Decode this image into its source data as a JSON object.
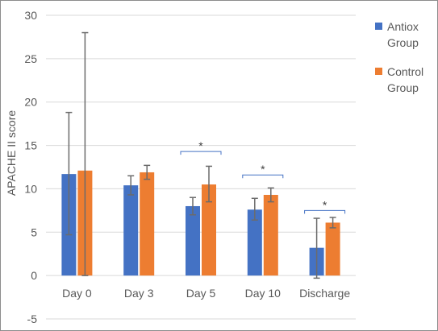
{
  "chart_data": {
    "type": "bar",
    "title": "",
    "xlabel": "",
    "ylabel": "APACHE II score",
    "ylim": [
      -5,
      30
    ],
    "yticks": [
      -5,
      0,
      5,
      10,
      15,
      20,
      25,
      30
    ],
    "grid": true,
    "legend_position": "right",
    "categories": [
      "Day 0",
      "Day 3",
      "Day 5",
      "Day 10",
      "Discharge"
    ],
    "series": [
      {
        "name": "Antiox Group",
        "color": "#4472C4",
        "values": [
          11.7,
          10.4,
          8.0,
          7.6,
          3.2
        ],
        "error_low": [
          4.7,
          9.3,
          7.0,
          6.4,
          -0.3
        ],
        "error_high": [
          18.8,
          11.5,
          9.0,
          8.9,
          6.6
        ]
      },
      {
        "name": "Control Group",
        "color": "#ED7D31",
        "values": [
          12.1,
          11.9,
          10.5,
          9.3,
          6.1
        ],
        "error_low": [
          0,
          11.1,
          8.5,
          8.5,
          5.5
        ],
        "error_high": [
          28.0,
          12.7,
          12.6,
          10.1,
          6.7
        ]
      }
    ],
    "significance": [
      {
        "category": "Day 5",
        "label": "*",
        "y": 14.3
      },
      {
        "category": "Day 10",
        "label": "*",
        "y": 11.6
      },
      {
        "category": "Discharge",
        "label": "*",
        "y": 7.5
      }
    ]
  }
}
